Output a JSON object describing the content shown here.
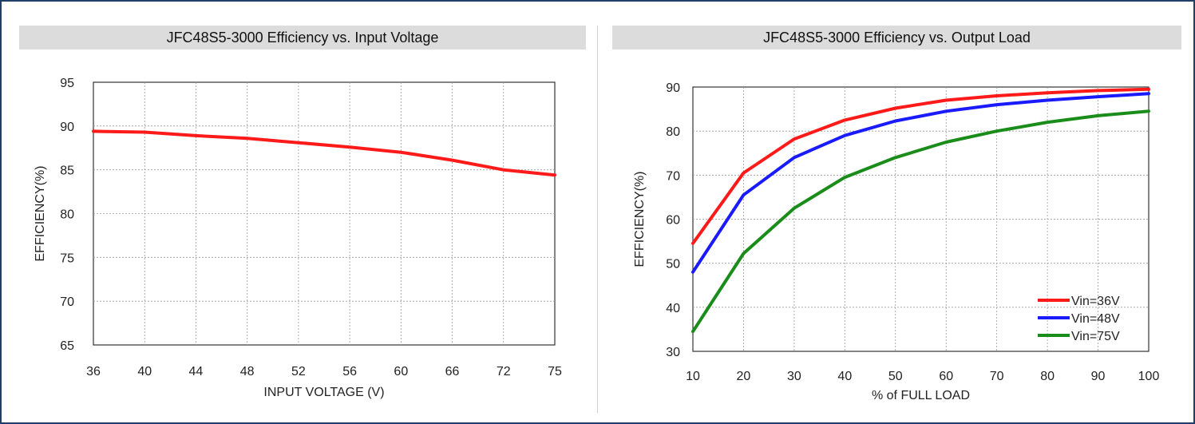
{
  "chart_data": [
    {
      "type": "line",
      "title": "JFC48S5-3000 Efficiency vs. Input Voltage",
      "xlabel": "INPUT VOLTAGE (V)",
      "ylabel": "EFFICIENCY(%)",
      "x_ticks": [
        "36",
        "40",
        "44",
        "48",
        "52",
        "56",
        "60",
        "66",
        "72",
        "75"
      ],
      "y_ticks": [
        "95",
        "90",
        "85",
        "80",
        "75",
        "70",
        "65"
      ],
      "ylim": [
        65,
        95
      ],
      "grid": true,
      "series": [
        {
          "color": "#ff1a1a",
          "x": [
            "36",
            "40",
            "44",
            "48",
            "52",
            "56",
            "60",
            "66",
            "72",
            "75"
          ],
          "values": [
            89.4,
            89.3,
            88.9,
            88.6,
            88.1,
            87.6,
            87.0,
            86.1,
            85.0,
            84.4
          ]
        }
      ]
    },
    {
      "type": "line",
      "title": "JFC48S5-3000 Efficiency vs. Output Load",
      "xlabel": "% of FULL LOAD",
      "ylabel": "EFFICIENCY(%)",
      "x_ticks": [
        "10",
        "20",
        "30",
        "40",
        "50",
        "60",
        "70",
        "80",
        "90",
        "100"
      ],
      "y_ticks": [
        "90",
        "80",
        "70",
        "60",
        "50",
        "40",
        "30"
      ],
      "xlim": [
        10,
        100
      ],
      "ylim": [
        30,
        90
      ],
      "grid": true,
      "legend": "bottom-right",
      "series": [
        {
          "name": "Vin=36V",
          "color": "#ff1a1a",
          "x": [
            10,
            20,
            30,
            40,
            50,
            60,
            70,
            80,
            90,
            100
          ],
          "values": [
            54.5,
            70.5,
            78.2,
            82.5,
            85.2,
            87.0,
            88.0,
            88.7,
            89.2,
            89.5
          ]
        },
        {
          "name": "Vin=48V",
          "color": "#1a1aff",
          "x": [
            10,
            20,
            30,
            40,
            50,
            60,
            70,
            80,
            90,
            100
          ],
          "values": [
            48.0,
            65.5,
            74.0,
            79.0,
            82.3,
            84.5,
            86.0,
            87.0,
            87.8,
            88.5
          ]
        },
        {
          "name": "Vin=75V",
          "color": "#1a8c1a",
          "x": [
            10,
            20,
            30,
            40,
            50,
            60,
            70,
            80,
            90,
            100
          ],
          "values": [
            34.5,
            52.2,
            62.5,
            69.5,
            74.0,
            77.5,
            80.0,
            82.0,
            83.5,
            84.5
          ]
        }
      ]
    }
  ]
}
